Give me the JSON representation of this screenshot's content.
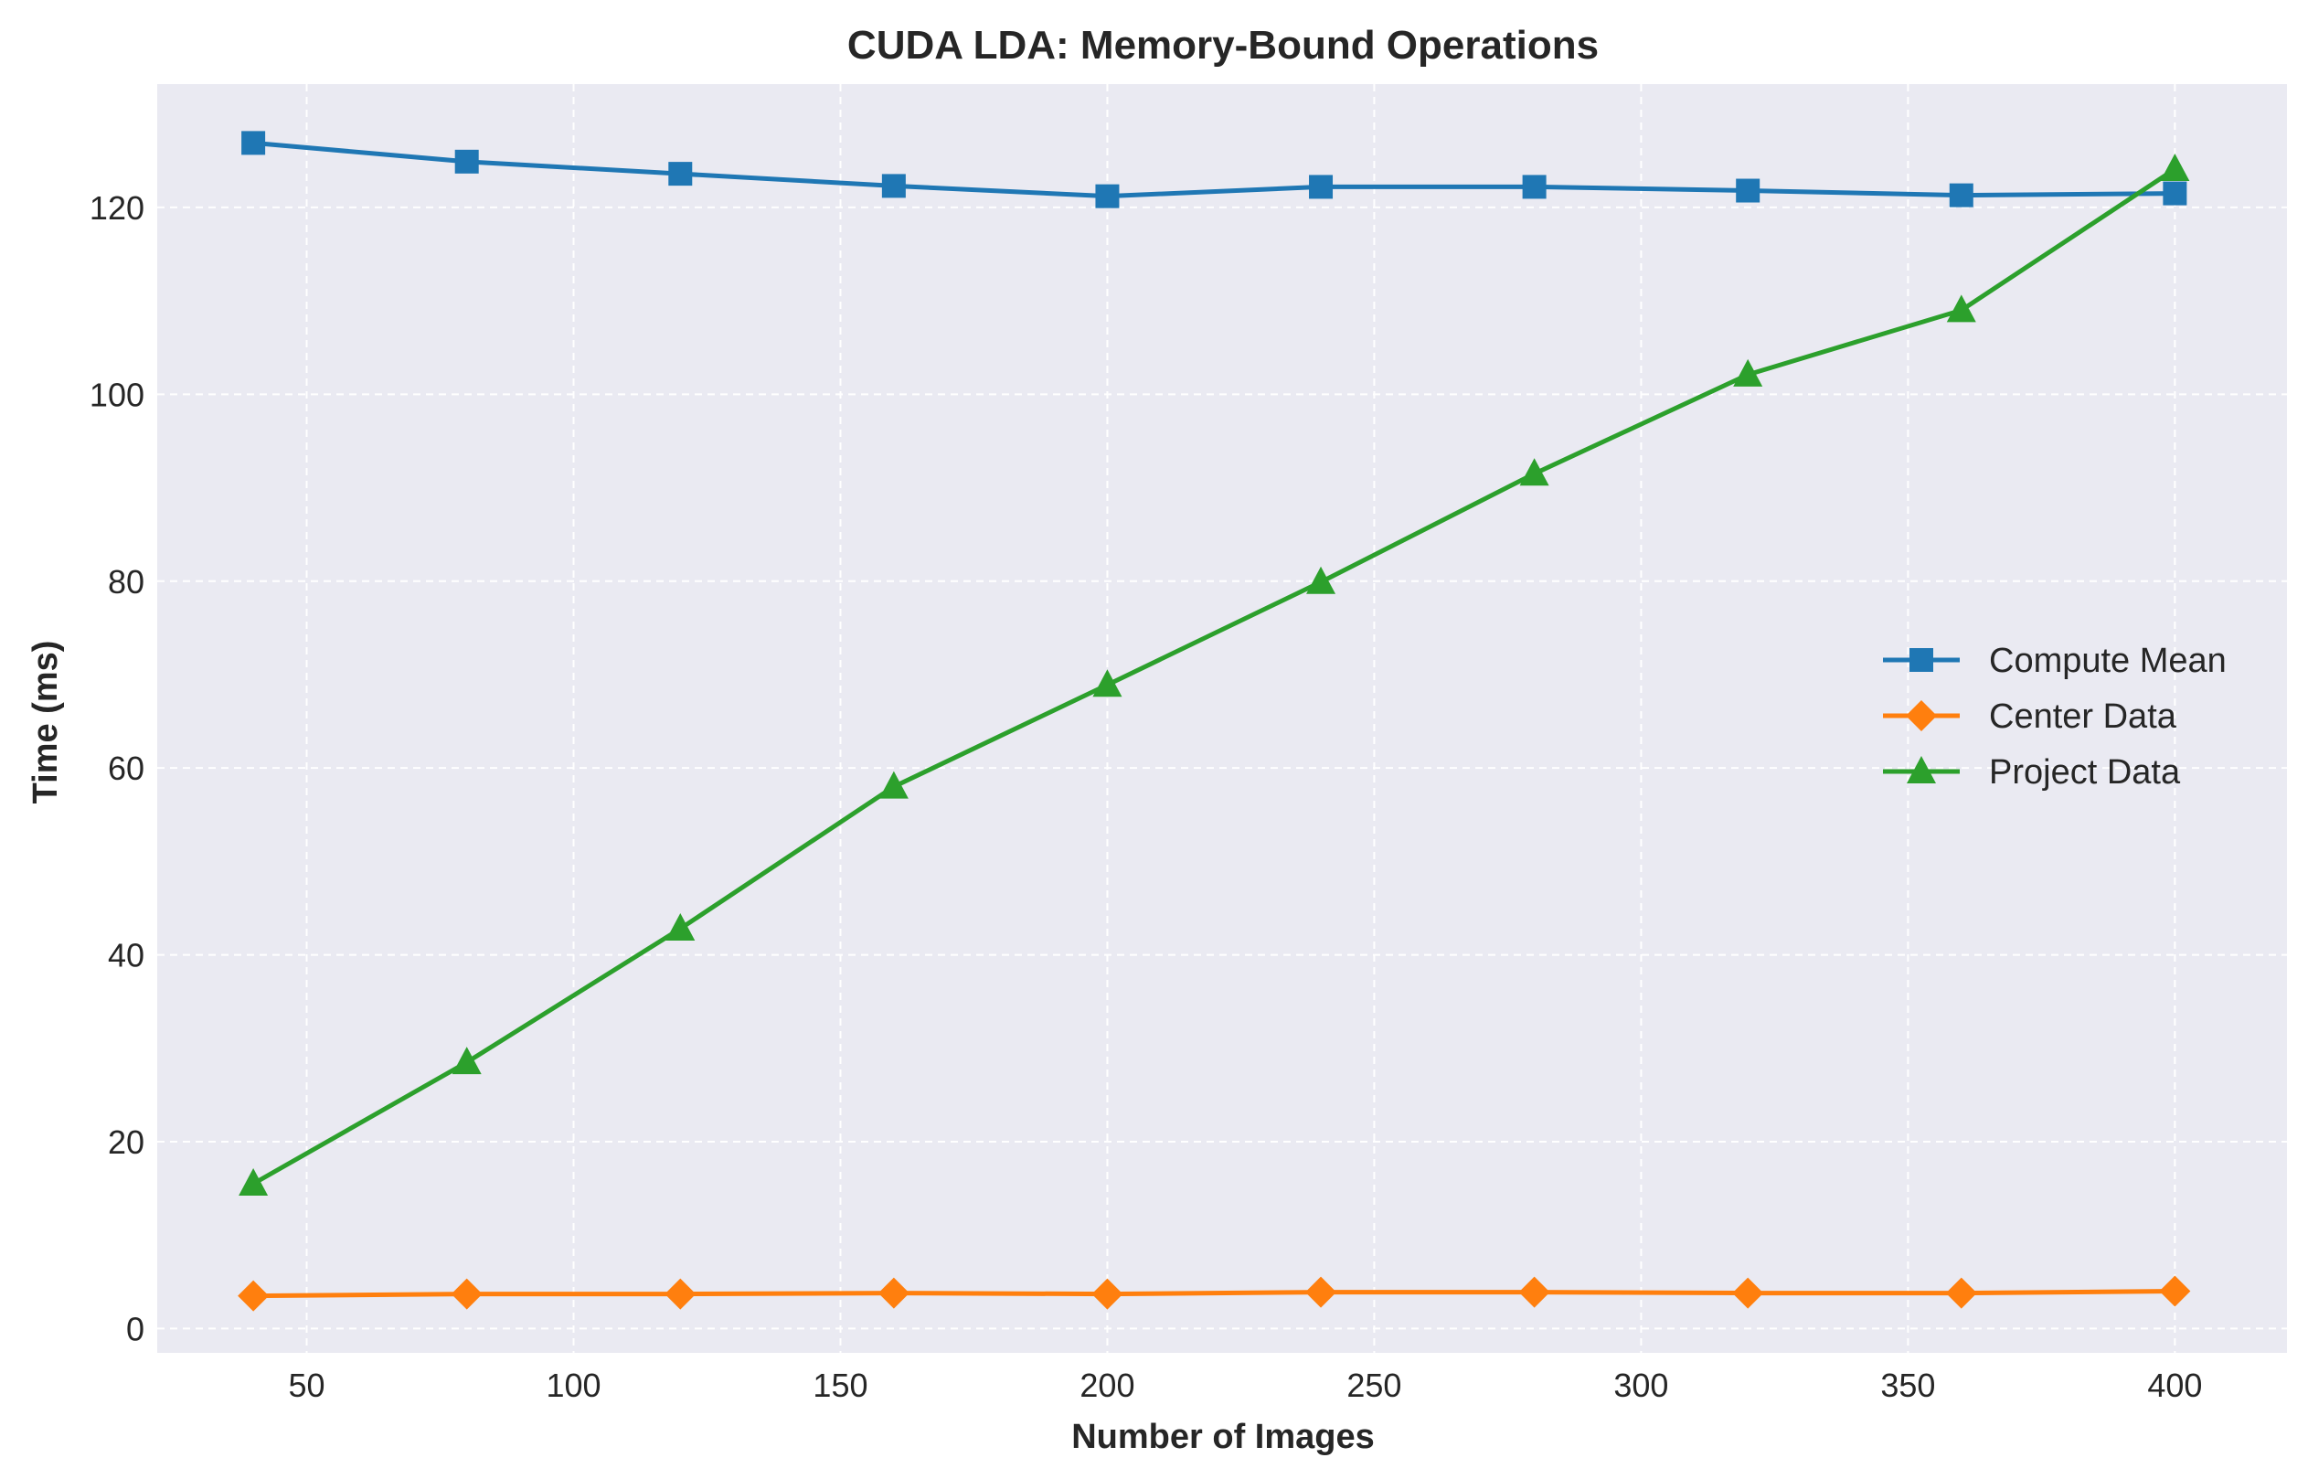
{
  "chart_data": {
    "type": "line",
    "title": "CUDA LDA: Memory-Bound Operations",
    "xlabel": "Number of Images",
    "ylabel": "Time (ms)",
    "x": [
      40,
      80,
      120,
      160,
      200,
      240,
      280,
      320,
      360,
      400
    ],
    "xlim": [
      22,
      421
    ],
    "ylim": [
      -2.6,
      133.2
    ],
    "xticks": [
      50,
      100,
      150,
      200,
      250,
      300,
      350,
      400
    ],
    "yticks": [
      0,
      20,
      40,
      60,
      80,
      100,
      120
    ],
    "grid": true,
    "legend_position": "center-right",
    "background_color": "#eaeaf2",
    "series": [
      {
        "name": "Compute Mean",
        "color": "#1f77b4",
        "marker": "square",
        "values": [
          126.9,
          124.9,
          123.6,
          122.3,
          121.2,
          122.2,
          122.2,
          121.8,
          121.3,
          121.5
        ]
      },
      {
        "name": "Center Data",
        "color": "#ff7f0e",
        "marker": "diamond",
        "values": [
          3.5,
          3.7,
          3.7,
          3.8,
          3.7,
          3.9,
          3.9,
          3.8,
          3.8,
          4.0
        ]
      },
      {
        "name": "Project Data",
        "color": "#2ca02c",
        "marker": "triangle",
        "values": [
          15.5,
          28.5,
          42.8,
          58.0,
          68.9,
          79.9,
          91.5,
          102.1,
          109.0,
          124.1
        ]
      }
    ]
  }
}
